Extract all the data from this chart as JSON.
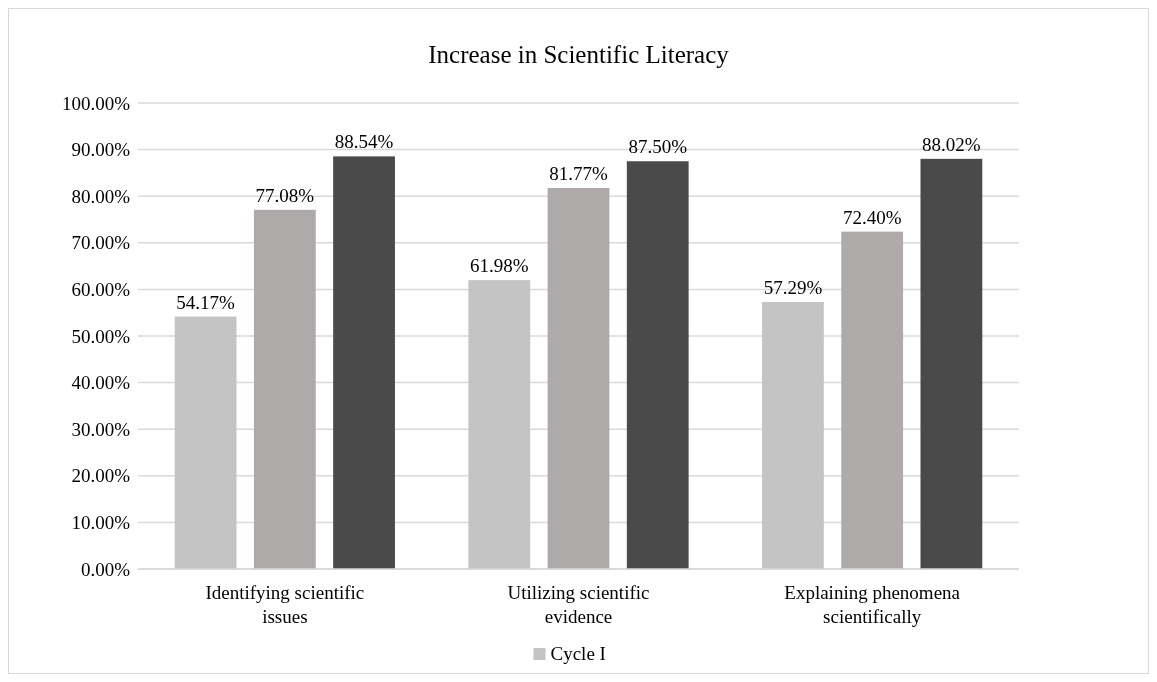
{
  "chart_data": {
    "type": "bar",
    "title": "Increase in Scientific Literacy",
    "categories": [
      "Identifying scientific issues",
      "Utilizing scientific evidence",
      "Explaining phenomena scientifically"
    ],
    "series": [
      {
        "name": "Cycle I",
        "color": "#c4c4c4",
        "values": [
          54.17,
          61.98,
          57.29
        ],
        "value_labels": [
          "54.17%",
          "61.98%",
          "57.29%"
        ]
      },
      {
        "color": "#aeaaaa",
        "values": [
          77.08,
          81.77,
          72.4
        ],
        "value_labels": [
          "77.08%",
          "81.77%",
          "72.40%"
        ]
      },
      {
        "color": "#4a4a4a",
        "values": [
          88.54,
          87.5,
          88.02
        ],
        "value_labels": [
          "88.54%",
          "87.50%",
          "88.02%"
        ]
      }
    ],
    "ylim": [
      0,
      100
    ],
    "yticks": [
      {
        "value": 0,
        "label": "0.00%"
      },
      {
        "value": 10,
        "label": "10.00%"
      },
      {
        "value": 20,
        "label": "20.00%"
      },
      {
        "value": 30,
        "label": "30.00%"
      },
      {
        "value": 40,
        "label": "40.00%"
      },
      {
        "value": 50,
        "label": "50.00%"
      },
      {
        "value": 60,
        "label": "60.00%"
      },
      {
        "value": 70,
        "label": "70.00%"
      },
      {
        "value": 80,
        "label": "80.00%"
      },
      {
        "value": 90,
        "label": "90.00%"
      },
      {
        "value": 100,
        "label": "100.00%"
      }
    ],
    "grid": "y",
    "legend": "bottom"
  }
}
